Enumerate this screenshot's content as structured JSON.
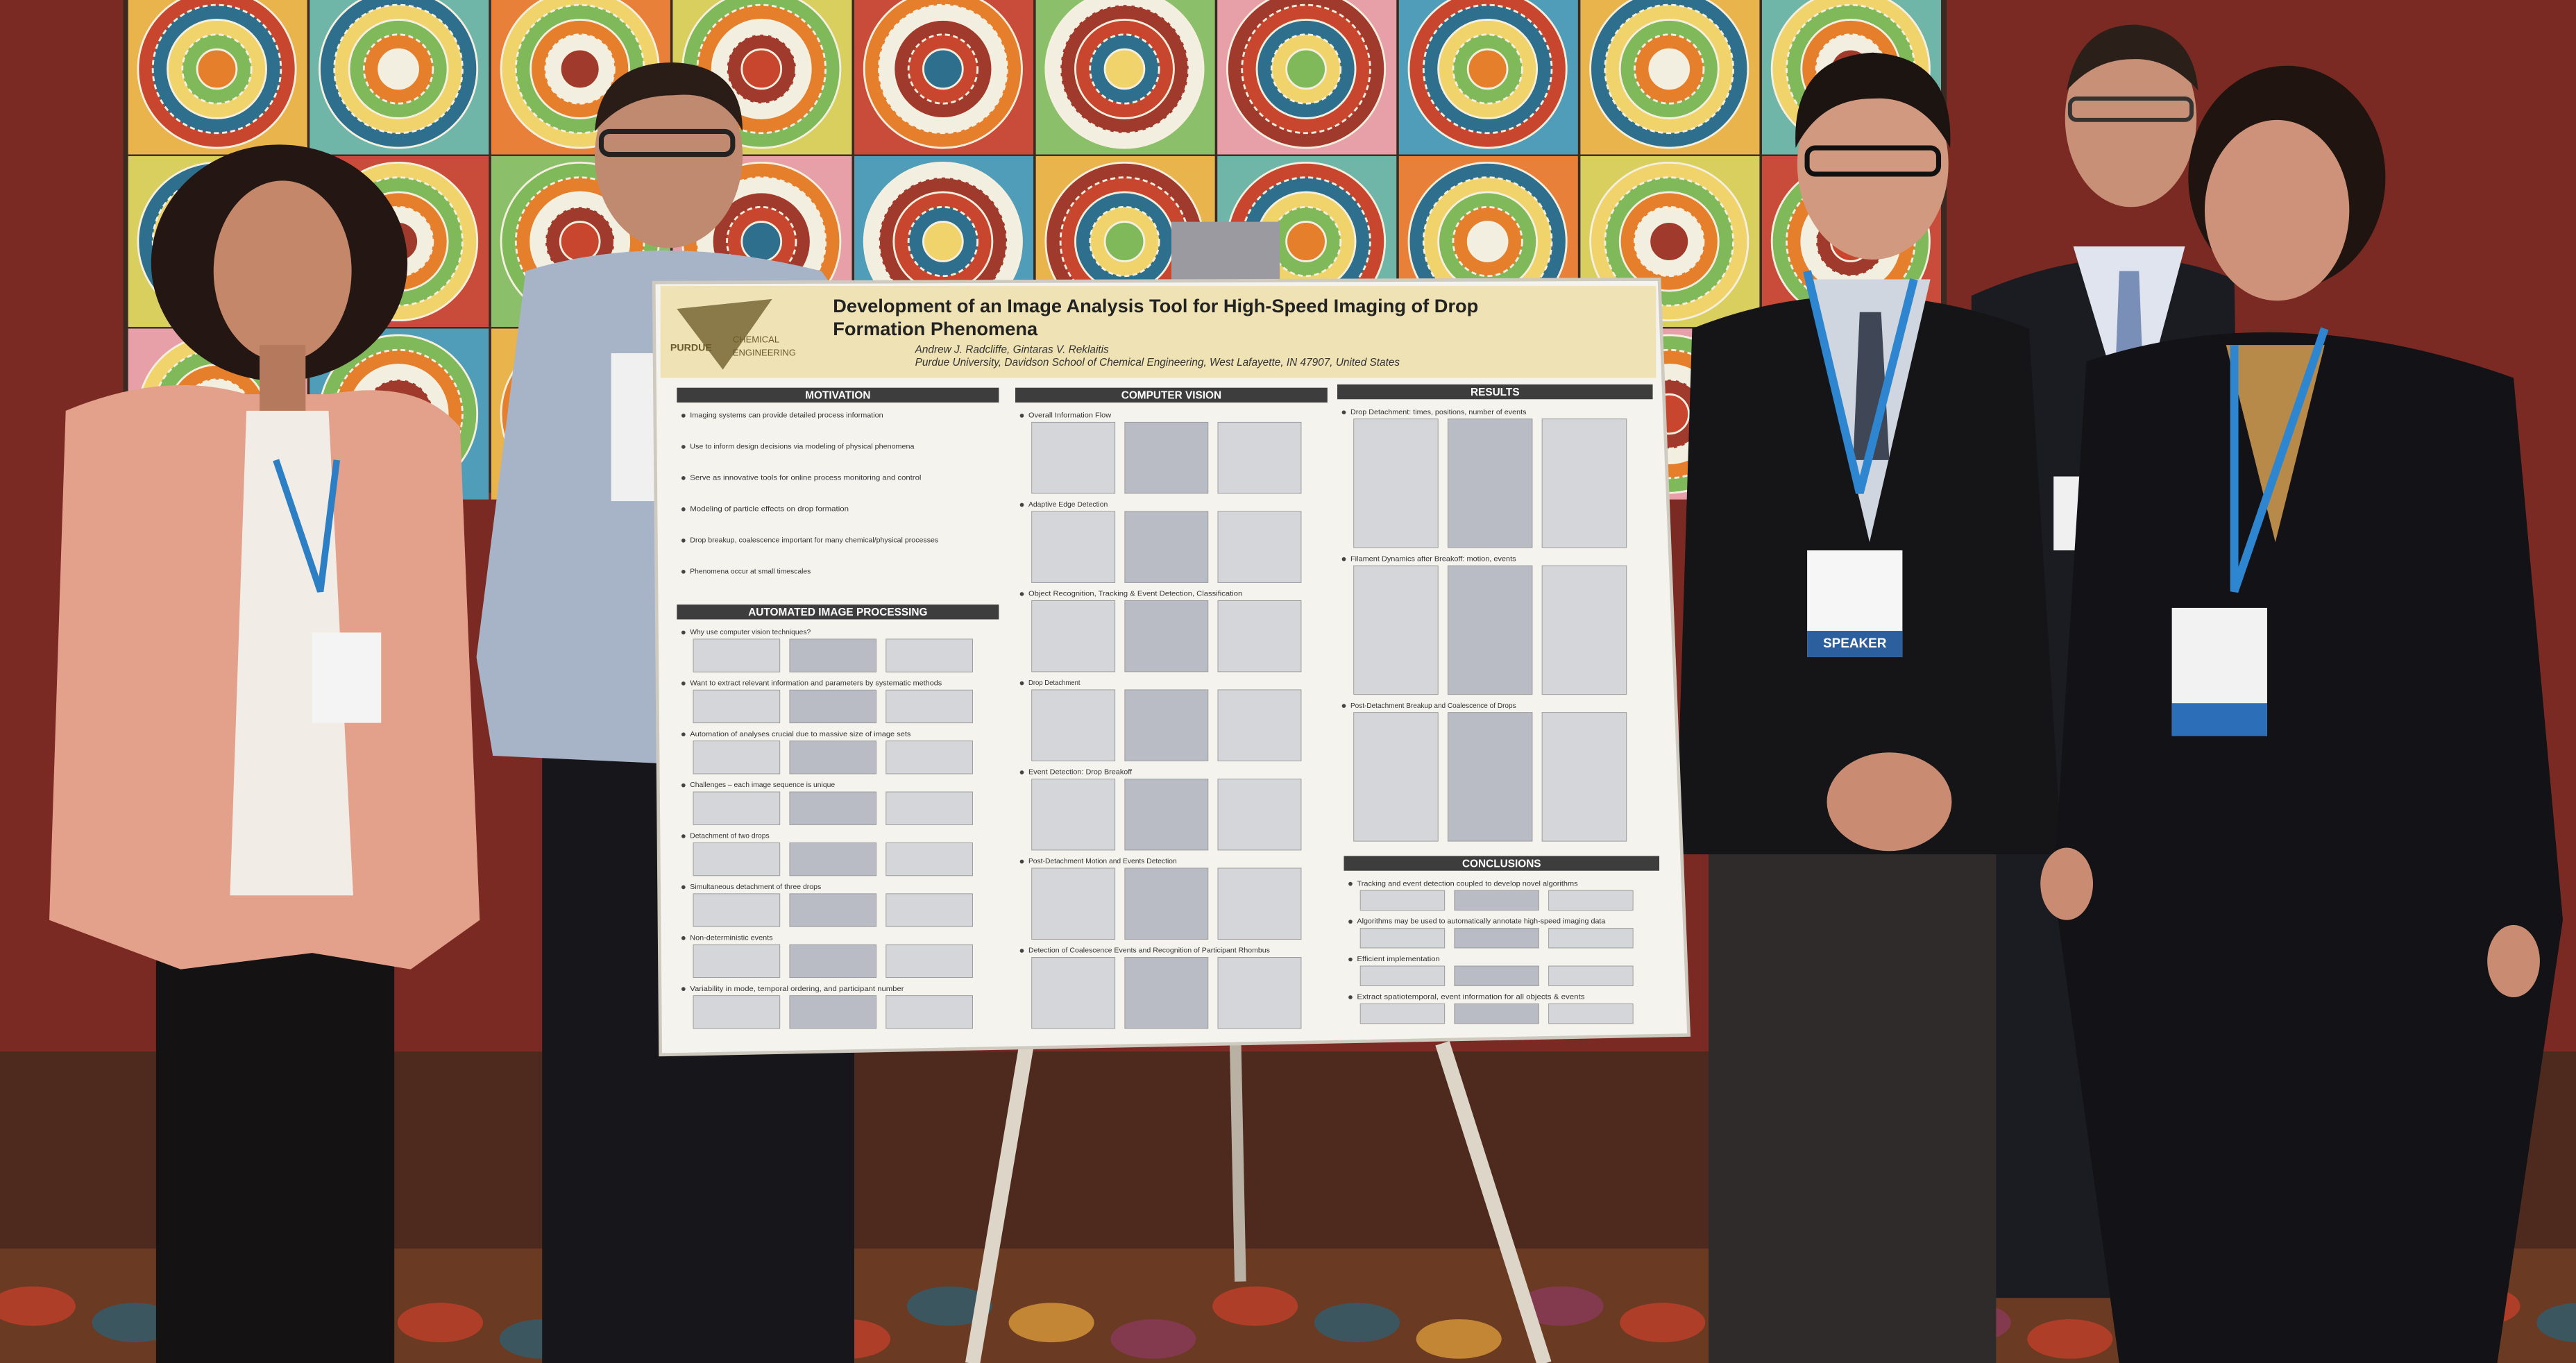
{
  "poster": {
    "logo": {
      "line1": "PURDUE",
      "line2": "CHEMICAL",
      "line3": "ENGINEERING"
    },
    "title_lines": [
      "Development of an Image Analysis Tool for High-Speed Imaging of Drop",
      "Formation Phenomena"
    ],
    "authors": "Andrew J. Radcliffe, Gintaras V. Reklaitis",
    "affiliation": "Purdue University, Davidson School of Chemical Engineering, West Lafayette, IN 47907, United States",
    "sections": [
      {
        "heading": "MOTIVATION",
        "lines": [
          "Imaging systems can provide detailed process information",
          "Use to inform design decisions via modeling of physical phenomena",
          "Serve as innovative tools for online process monitoring and control",
          "Modeling of particle effects on drop formation",
          "Drop breakup, coalescence important for many chemical/physical processes",
          "Phenomena occur at small timescales"
        ]
      },
      {
        "heading": "AUTOMATED IMAGE PROCESSING",
        "lines": [
          "Why use computer vision techniques?",
          "Want to extract relevant information and parameters by systematic methods",
          "Automation of analyses crucial due to massive size of image sets",
          "Challenges – each image sequence is unique",
          "Detachment of two drops",
          "Simultaneous detachment of three drops",
          "Non-deterministic events",
          "Variability in mode, temporal ordering, and participant number"
        ]
      },
      {
        "heading": "COMPUTER VISION",
        "lines": [
          "Overall Information Flow",
          "Adaptive Edge Detection",
          "Object Recognition, Tracking & Event Detection, Classification",
          "Drop Detachment",
          "Event Detection: Drop Breakoff",
          "Post-Detachment Motion and Events Detection",
          "Detection of Coalescence Events and Recognition of Participant Rhombus"
        ]
      },
      {
        "heading": "RESULTS",
        "lines": [
          "Drop Detachment: times, positions, number of events",
          "Filament Dynamics after Breakoff: motion, events",
          "Post-Detachment Breakup and Coalescence of Drops"
        ]
      },
      {
        "heading": "CONCLUSIONS",
        "lines": [
          "Tracking and event detection coupled to develop novel algorithms",
          "Algorithms may be used to automatically annotate high-speed imaging data",
          "Efficient implementation",
          "Extract spatiotemporal, event information for all objects & events"
        ]
      }
    ]
  },
  "badges": {
    "speaker": "SPEAKER"
  }
}
